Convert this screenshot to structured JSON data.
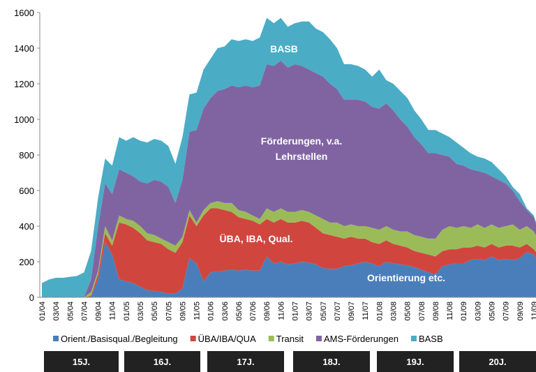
{
  "chart_data": {
    "type": "stacked_area",
    "categories": [
      "01/04",
      null,
      "03/04",
      null,
      "05/04",
      null,
      "07/04",
      null,
      "09/04",
      null,
      "11/04",
      null,
      "01/05",
      null,
      "03/05",
      null,
      "05/05",
      null,
      "07/05",
      null,
      "09/05",
      null,
      "11/05",
      null,
      "01/06",
      null,
      "03/06",
      null,
      "05/06",
      null,
      "07/06",
      null,
      "09/06",
      null,
      "11/06",
      null,
      "01/07",
      null,
      "03/07",
      null,
      "05/07",
      null,
      "07/07",
      null,
      "09/07",
      null,
      "11/07",
      null,
      "01/08",
      null,
      "03/08",
      null,
      "05/08",
      null,
      "07/08",
      null,
      "09/08",
      null,
      "11/08",
      null,
      "01/09",
      null,
      "03/09",
      null,
      "05/09",
      null,
      "07/09",
      null,
      "09/09",
      null,
      "11/09",
      null
    ],
    "series": [
      {
        "name": "Orient./Basisqual./Begleitung",
        "color": "#4a7ebb",
        "values": [
          0,
          0,
          0,
          0,
          0,
          0,
          0,
          5,
          100,
          310,
          240,
          100,
          90,
          80,
          60,
          40,
          35,
          30,
          20,
          20,
          50,
          220,
          190,
          90,
          140,
          145,
          150,
          155,
          150,
          155,
          150,
          150,
          230,
          190,
          200,
          185,
          190,
          200,
          195,
          185,
          165,
          160,
          160,
          175,
          180,
          190,
          200,
          190,
          175,
          200,
          190,
          185,
          180,
          170,
          155,
          140,
          130,
          175,
          185,
          190,
          190,
          210,
          215,
          210,
          230,
          210,
          215,
          210,
          220,
          255,
          240,
          175
        ]
      },
      {
        "name": "ÜBA/IBA/QUA",
        "color": "#d0463f",
        "values": [
          0,
          0,
          0,
          0,
          0,
          0,
          0,
          5,
          30,
          50,
          50,
          320,
          320,
          310,
          300,
          280,
          275,
          270,
          250,
          230,
          260,
          240,
          210,
          370,
          360,
          355,
          340,
          325,
          300,
          285,
          280,
          260,
          210,
          230,
          240,
          235,
          230,
          230,
          225,
          205,
          195,
          190,
          180,
          155,
          160,
          140,
          130,
          120,
          125,
          120,
          110,
          105,
          100,
          90,
          95,
          100,
          100,
          85,
          85,
          80,
          90,
          70,
          75,
          70,
          70,
          70,
          75,
          80,
          60,
          45,
          30,
          45
        ]
      },
      {
        "name": "Transit",
        "color": "#9bbb59",
        "values": [
          0,
          0,
          0,
          0,
          0,
          0,
          0,
          20,
          20,
          40,
          30,
          40,
          30,
          40,
          40,
          40,
          40,
          30,
          40,
          40,
          30,
          30,
          20,
          30,
          30,
          40,
          40,
          50,
          40,
          40,
          30,
          30,
          60,
          60,
          60,
          60,
          60,
          60,
          60,
          70,
          80,
          70,
          80,
          70,
          70,
          70,
          70,
          80,
          80,
          80,
          80,
          80,
          90,
          90,
          90,
          90,
          100,
          120,
          130,
          120,
          120,
          110,
          120,
          110,
          110,
          110,
          110,
          120,
          100,
          100,
          100,
          80
        ]
      },
      {
        "name": "AMS-Förderungen",
        "color": "#8064a2",
        "values": [
          0,
          0,
          0,
          0,
          0,
          0,
          0,
          70,
          250,
          240,
          260,
          260,
          260,
          250,
          250,
          280,
          310,
          320,
          310,
          240,
          320,
          440,
          520,
          570,
          590,
          620,
          640,
          660,
          690,
          710,
          720,
          750,
          810,
          820,
          830,
          810,
          830,
          810,
          800,
          800,
          800,
          780,
          750,
          710,
          700,
          710,
          700,
          680,
          680,
          690,
          670,
          630,
          590,
          550,
          520,
          480,
          480,
          420,
          390,
          360,
          340,
          330,
          300,
          310,
          270,
          270,
          240,
          190,
          160,
          90,
          80,
          30
        ]
      },
      {
        "name": "BASB",
        "color": "#4bacc6",
        "values": [
          80,
          100,
          110,
          110,
          115,
          120,
          140,
          160,
          160,
          140,
          160,
          180,
          180,
          220,
          230,
          230,
          230,
          230,
          230,
          220,
          240,
          210,
          210,
          220,
          220,
          240,
          240,
          260,
          260,
          260,
          260,
          270,
          260,
          240,
          240,
          230,
          230,
          250,
          270,
          250,
          250,
          250,
          230,
          200,
          200,
          190,
          180,
          170,
          220,
          130,
          150,
          160,
          160,
          150,
          140,
          130,
          130,
          120,
          110,
          120,
          100,
          90,
          80,
          80,
          80,
          60,
          40,
          20,
          40,
          10,
          10,
          10
        ]
      }
    ],
    "ylim": [
      0,
      1600
    ],
    "yticks": [
      0,
      200,
      400,
      600,
      800,
      1000,
      1200,
      1400,
      1600
    ],
    "annotations": [
      "BASB",
      "Förderungen, v.a.",
      "Lehrstellen",
      "ÜBA, IBA, Qual.",
      "Orientierung etc."
    ],
    "year_bands": [
      "15J.",
      "16J.",
      "17J.",
      "18J.",
      "19J.",
      "20J."
    ],
    "legend": "bottom"
  }
}
